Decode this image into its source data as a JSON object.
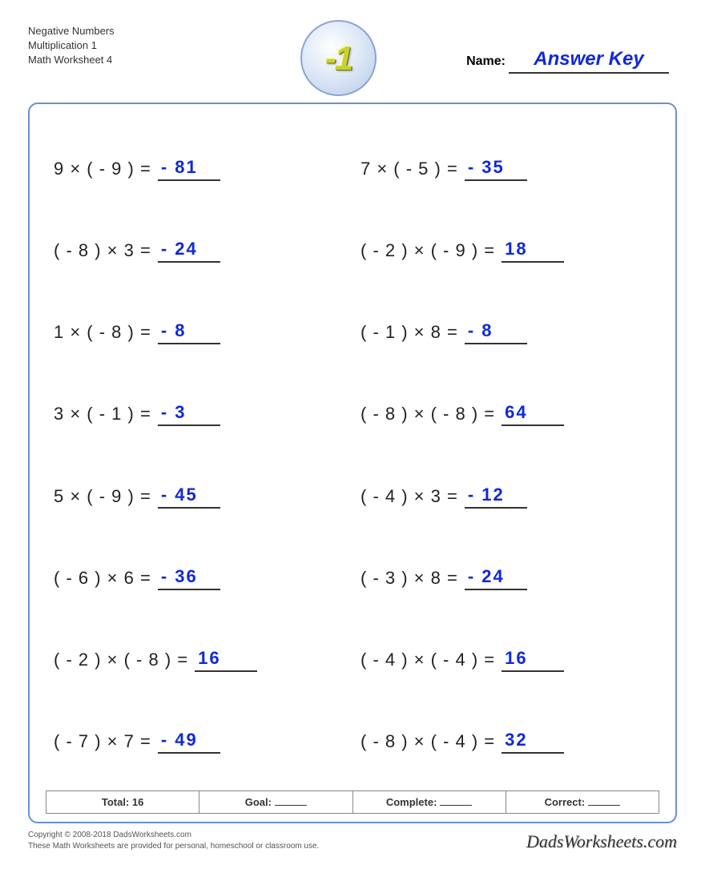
{
  "header": {
    "line1": "Negative Numbers",
    "line2": "Multiplication 1",
    "line3": "Math Worksheet 4",
    "badge_text": "-1",
    "name_label": "Name:",
    "answer_key": "Answer Key"
  },
  "colors": {
    "border": "#6a8fd6",
    "answer": "#1029d8",
    "text": "#222222",
    "badge_fill": "#c9d035"
  },
  "problems": [
    {
      "expr": "9 × ( - 9 ) =",
      "ans": "- 81"
    },
    {
      "expr": "7 × ( - 5 ) =",
      "ans": "- 35"
    },
    {
      "expr": "( - 8 ) × 3 =",
      "ans": "- 24"
    },
    {
      "expr": "( - 2 ) × ( - 9 ) =",
      "ans": "18"
    },
    {
      "expr": "1 × ( - 8 ) =",
      "ans": "- 8"
    },
    {
      "expr": "( - 1 ) × 8 =",
      "ans": "- 8"
    },
    {
      "expr": "3 × ( - 1 ) =",
      "ans": "- 3"
    },
    {
      "expr": "( - 8 ) × ( - 8 ) =",
      "ans": "64"
    },
    {
      "expr": "5 × ( - 9 ) =",
      "ans": "- 45"
    },
    {
      "expr": "( - 4 ) × 3 =",
      "ans": "- 12"
    },
    {
      "expr": "( - 6 ) × 6 =",
      "ans": "- 36"
    },
    {
      "expr": "( - 3 ) × 8 =",
      "ans": "- 24"
    },
    {
      "expr": "( - 2 ) × ( - 8 ) =",
      "ans": "16"
    },
    {
      "expr": "( - 4 ) × ( - 4 ) =",
      "ans": "16"
    },
    {
      "expr": "( - 7 ) × 7 =",
      "ans": "- 49"
    },
    {
      "expr": "( - 8 ) × ( - 4 ) =",
      "ans": "32"
    }
  ],
  "score": {
    "total_label": "Total: 16",
    "goal_label": "Goal:",
    "complete_label": "Complete:",
    "correct_label": "Correct:"
  },
  "footer": {
    "copyright": "Copyright © 2008-2018 DadsWorksheets.com",
    "note": "These Math Worksheets are provided for personal, homeschool or classroom use.",
    "brand": "DadsWorksheets.com"
  }
}
